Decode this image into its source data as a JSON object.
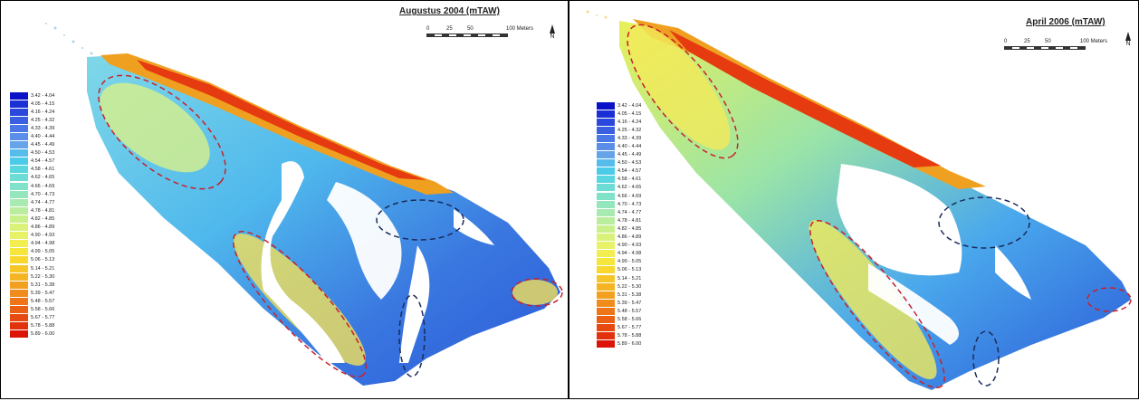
{
  "maps": [
    {
      "id": "left",
      "title": "Augustus 2004 (mTAW)",
      "scale": {
        "ticks": [
          "0",
          "25",
          "50",
          "100 Meters"
        ]
      },
      "north_label": "N"
    },
    {
      "id": "right",
      "title": "April 2006 (mTAW)",
      "scale": {
        "ticks": [
          "0",
          "25",
          "50",
          "100 Meters"
        ]
      },
      "north_label": "N"
    }
  ],
  "legend": {
    "classes": [
      {
        "label": "3.42 - 4.04",
        "color": "#0a12c8"
      },
      {
        "label": "4.05 - 4.15",
        "color": "#1a2fd4"
      },
      {
        "label": "4.16 - 4.24",
        "color": "#2a48dc"
      },
      {
        "label": "4.25 - 4.32",
        "color": "#3a60e2"
      },
      {
        "label": "4.33 - 4.39",
        "color": "#4a78e6"
      },
      {
        "label": "4.40 - 4.44",
        "color": "#5a8ee8"
      },
      {
        "label": "4.45 - 4.49",
        "color": "#66a4ea"
      },
      {
        "label": "4.50 - 4.53",
        "color": "#56bcec"
      },
      {
        "label": "4.54 - 4.57",
        "color": "#4ccbe8"
      },
      {
        "label": "4.58 - 4.61",
        "color": "#5ad6e0"
      },
      {
        "label": "4.62 - 4.65",
        "color": "#6cdcd4"
      },
      {
        "label": "4.66 - 4.69",
        "color": "#80e2c8"
      },
      {
        "label": "4.70 - 4.73",
        "color": "#94e6bc"
      },
      {
        "label": "4.74 - 4.77",
        "color": "#a8eab0"
      },
      {
        "label": "4.78 - 4.81",
        "color": "#baee9e"
      },
      {
        "label": "4.82 - 4.85",
        "color": "#caf08c"
      },
      {
        "label": "4.86 - 4.89",
        "color": "#daf27a"
      },
      {
        "label": "4.90 - 4.93",
        "color": "#e8f266"
      },
      {
        "label": "4.94 - 4.98",
        "color": "#f2ee50"
      },
      {
        "label": "4.99 - 5.05",
        "color": "#f6e63c"
      },
      {
        "label": "5.06 - 5.13",
        "color": "#f8d82e"
      },
      {
        "label": "5.14 - 5.21",
        "color": "#f6c628"
      },
      {
        "label": "5.22 - 5.30",
        "color": "#f4b424"
      },
      {
        "label": "5.31 - 5.38",
        "color": "#f2a020"
      },
      {
        "label": "5.39 - 5.47",
        "color": "#f08c1c"
      },
      {
        "label": "5.48 - 5.57",
        "color": "#ee7618"
      },
      {
        "label": "5.58 - 5.66",
        "color": "#ea6014"
      },
      {
        "label": "5.67 - 5.77",
        "color": "#e64a10"
      },
      {
        "label": "5.78 - 5.88",
        "color": "#e2320c"
      },
      {
        "label": "5.89 - 6.00",
        "color": "#dc1408"
      }
    ]
  },
  "annotation_color": "#c8202a",
  "annotation_color_2": "#1a2b5a"
}
